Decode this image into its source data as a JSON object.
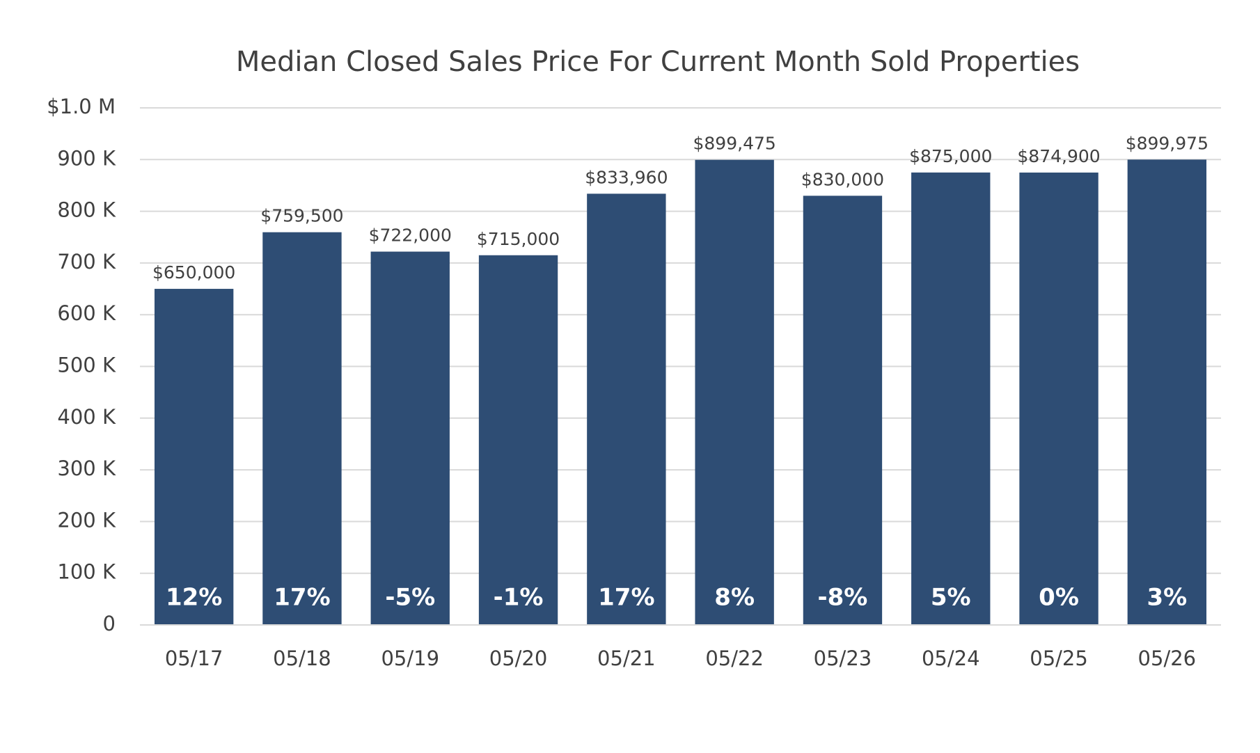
{
  "chart_data": {
    "type": "bar",
    "title": "Median Closed Sales Price For Current Month Sold Properties",
    "categories": [
      "05/17",
      "05/18",
      "05/19",
      "05/20",
      "05/21",
      "05/22",
      "05/23",
      "05/24",
      "05/25",
      "05/26"
    ],
    "values": [
      650000,
      759500,
      722000,
      715000,
      833960,
      899475,
      830000,
      875000,
      874900,
      899975
    ],
    "value_labels": [
      "$650,000",
      "$759,500",
      "$722,000",
      "$715,000",
      "$833,960",
      "$899,475",
      "$830,000",
      "$875,000",
      "$874,900",
      "$899,975"
    ],
    "changes": [
      12,
      17,
      -5,
      -1,
      17,
      8,
      -8,
      5,
      0,
      3
    ],
    "change_labels": [
      "12%",
      "17%",
      "-5%",
      "-1%",
      "17%",
      "8%",
      "-8%",
      "5%",
      "0%",
      "3%"
    ],
    "color": "#2e4d74",
    "ylim": [
      0,
      1000000
    ],
    "yticks": [
      0,
      {
        "value": 100000,
        "label": "100 K"
      },
      {
        "value": 200000,
        "label": "200 K"
      },
      {
        "value": 300000,
        "label": "300 K"
      },
      {
        "value": 400000,
        "label": "400 K"
      },
      {
        "value": 500000,
        "label": "500 K"
      },
      {
        "value": 600000,
        "label": "600 K"
      },
      {
        "value": 700000,
        "label": "700 K"
      },
      {
        "value": 800000,
        "label": "800 K"
      },
      {
        "value": 900000,
        "label": "900 K"
      },
      {
        "value": 1000000,
        "label": "$1.0 M"
      }
    ],
    "grid": true
  }
}
